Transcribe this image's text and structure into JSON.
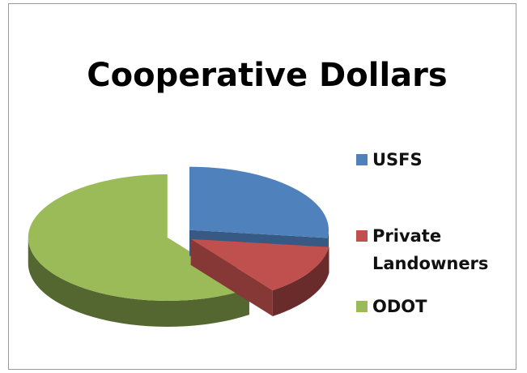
{
  "chart_data": {
    "type": "pie",
    "title": "Cooperative Dollars",
    "categories": [
      "USFS",
      "Private Landowners",
      "ODOT"
    ],
    "values": [
      27,
      13,
      60
    ],
    "colors": [
      "#4f81bd",
      "#c0504d",
      "#9bbb59"
    ],
    "legend": "right"
  }
}
